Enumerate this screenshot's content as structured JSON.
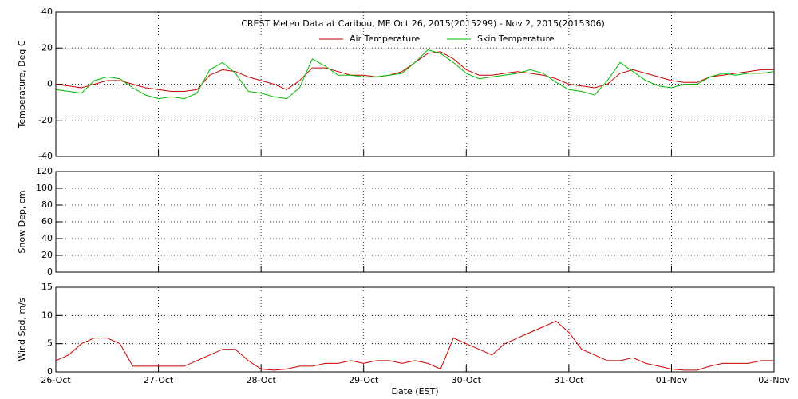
{
  "chart_data": [
    {
      "type": "line",
      "title": "CREST Meteo Data at Caribou, ME   Oct 26, 2015(2015299) - Nov  2, 2015(2015306)",
      "y_label": "Temperature, Deg C",
      "ylim": [
        -40,
        40
      ],
      "yticks": [
        -40,
        -20,
        0,
        20,
        40
      ],
      "grid": true,
      "series": [
        {
          "name": "Air Temperature",
          "color": "#cc0000",
          "values": [
            0,
            -1,
            -2,
            0,
            2,
            2,
            0,
            -2,
            -3,
            -4,
            -4,
            -3,
            5,
            8,
            7,
            4,
            2,
            0,
            -3,
            2,
            9,
            9,
            7,
            5,
            5,
            4,
            5,
            7,
            12,
            17,
            18,
            14,
            8,
            5,
            5,
            6,
            7,
            6,
            5,
            3,
            0,
            -1,
            -2,
            0,
            6,
            8,
            6,
            4,
            2,
            1,
            1,
            4,
            5,
            6,
            7,
            8,
            8
          ]
        },
        {
          "name": "Skin Temperature",
          "color": "#00bb00",
          "values": [
            -3,
            -4,
            -5,
            2,
            4,
            3,
            -2,
            -6,
            -8,
            -7,
            -8,
            -5,
            8,
            12,
            6,
            -4,
            -5,
            -7,
            -8,
            -2,
            14,
            10,
            5,
            5,
            4,
            4,
            5,
            6,
            12,
            19,
            17,
            12,
            6,
            3,
            4,
            5,
            6,
            8,
            6,
            1,
            -3,
            -4,
            -6,
            2,
            12,
            7,
            2,
            -1,
            -2,
            0,
            0,
            4,
            6,
            5,
            6,
            6,
            7
          ]
        }
      ]
    },
    {
      "type": "line",
      "y_label": "Snow Dep, cm",
      "ylim": [
        0,
        120
      ],
      "yticks": [
        0,
        20,
        40,
        60,
        80,
        100,
        120
      ],
      "grid": true,
      "series": []
    },
    {
      "type": "line",
      "y_label": "Wind Spd, m/s",
      "x_label": "Date (EST)",
      "ylim": [
        0,
        15
      ],
      "yticks": [
        0,
        5,
        10,
        15
      ],
      "grid": true,
      "categories": [
        "26-Oct",
        null,
        null,
        null,
        null,
        null,
        null,
        null,
        "27-Oct",
        null,
        null,
        null,
        null,
        null,
        null,
        null,
        "28-Oct",
        null,
        null,
        null,
        null,
        null,
        null,
        null,
        "29-Oct",
        null,
        null,
        null,
        null,
        null,
        null,
        null,
        "30-Oct",
        null,
        null,
        null,
        null,
        null,
        null,
        null,
        "31-Oct",
        null,
        null,
        null,
        null,
        null,
        null,
        null,
        "01-Nov",
        null,
        null,
        null,
        null,
        null,
        null,
        null,
        "02-Nov"
      ],
      "series": [
        {
          "color": "#cc0000",
          "values": [
            2,
            3,
            5,
            6,
            6,
            5,
            1,
            1,
            1,
            1,
            1,
            2,
            3,
            4,
            4,
            2,
            0.5,
            0.3,
            0.5,
            1,
            1,
            1.5,
            1.5,
            2,
            1.5,
            2,
            2,
            1.5,
            2,
            1.5,
            0.5,
            6,
            5,
            4,
            3,
            5,
            6,
            7,
            8,
            9,
            7,
            4,
            3,
            2,
            2,
            2.5,
            1.5,
            1,
            0.5,
            0.3,
            0.3,
            1,
            1.5,
            1.5,
            1.5,
            2,
            2
          ]
        }
      ]
    }
  ]
}
